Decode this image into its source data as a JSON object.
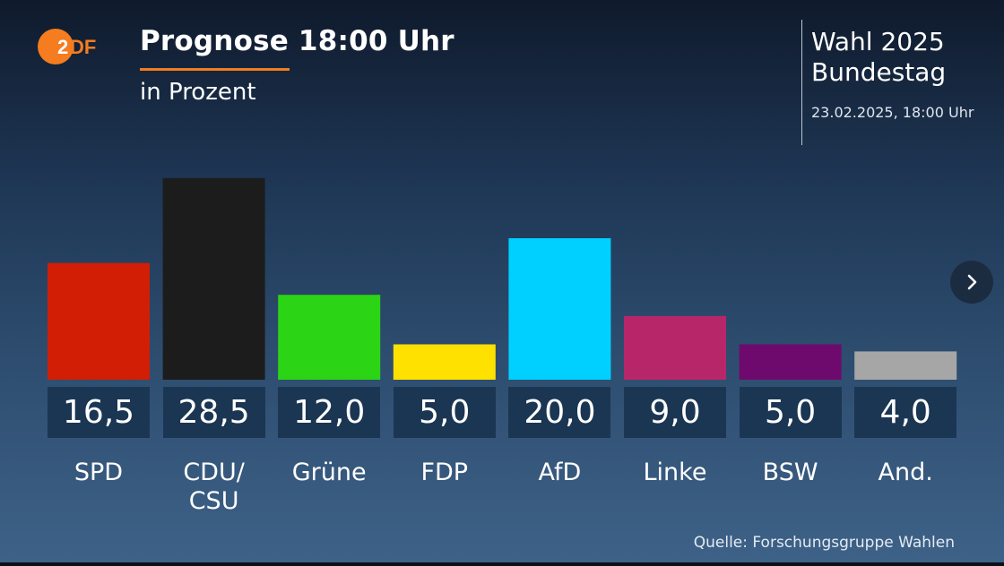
{
  "brand": {
    "logo_text": "2DF",
    "logo_color": "#f57c1f"
  },
  "header": {
    "title": "Prognose 18:00 Uhr",
    "subtitle": "in Prozent",
    "accent_color": "#f57c1f"
  },
  "election": {
    "title": "Wahl 2025",
    "subtitle": "Bundestag",
    "datetime": "23.02.2025, 18:00 Uhr"
  },
  "chart_data": {
    "type": "bar",
    "title": "Prognose 18:00 Uhr",
    "subtitle": "in Prozent",
    "categories": [
      "SPD",
      "CDU/\nCSU",
      "Grüne",
      "FDP",
      "AfD",
      "Linke",
      "BSW",
      "And."
    ],
    "values": [
      16.5,
      28.5,
      12.0,
      5.0,
      20.0,
      9.0,
      5.0,
      4.0
    ],
    "value_labels": [
      "16,5",
      "28,5",
      "12,0",
      "5,0",
      "20,0",
      "9,0",
      "5,0",
      "4,0"
    ],
    "colors": [
      "#d11e05",
      "#1c1c1c",
      "#2bd414",
      "#ffe100",
      "#00d0ff",
      "#b8266a",
      "#6e0a6d",
      "#a6a6a6"
    ],
    "grid": false,
    "legend": "none"
  },
  "navigation": {
    "next_icon": "chevron-right-icon"
  },
  "source": "Quelle: Forschungsgruppe Wahlen"
}
